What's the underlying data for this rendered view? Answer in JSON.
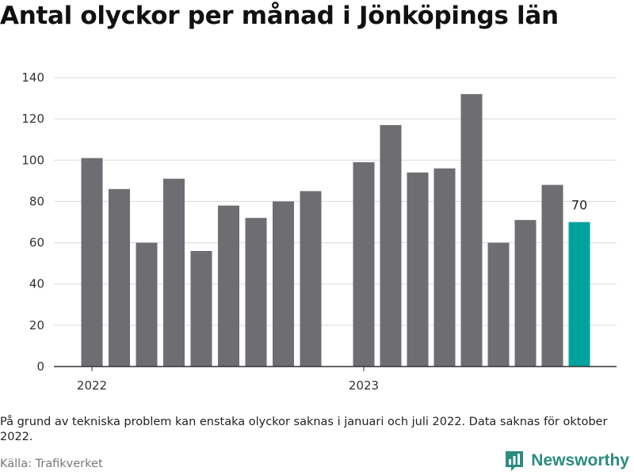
{
  "chart_data": {
    "type": "bar",
    "title": "Antal olyckor per månad i Jönköpings län",
    "xlabel": "",
    "ylabel": "",
    "ylim": [
      0,
      140
    ],
    "yticks": [
      "0",
      "20",
      "40",
      "60",
      "80",
      "100",
      "120",
      "140"
    ],
    "year_labels": [
      "2022",
      "2023"
    ],
    "grid": true,
    "series": [
      {
        "year": "2022",
        "values": [
          101,
          86,
          60,
          91,
          56,
          78,
          72,
          80,
          85
        ]
      },
      {
        "year": "2023",
        "values": [
          99,
          117,
          94,
          96,
          132,
          60,
          71,
          88,
          70
        ]
      }
    ],
    "highlight_label": "70",
    "colors": {
      "bar": "#6e6d72",
      "highlight": "#00a39b",
      "grid": "#d9d9d9",
      "axis": "#333333"
    }
  },
  "footer": {
    "note": "På grund av tekniska problem kan enstaka olyckor saknas i januari och juli 2022. Data saknas för oktober 2022.",
    "source": "Källa: Trafikverket",
    "brand": "Newsworthy",
    "brand_icon": "bar-chart-icon"
  }
}
